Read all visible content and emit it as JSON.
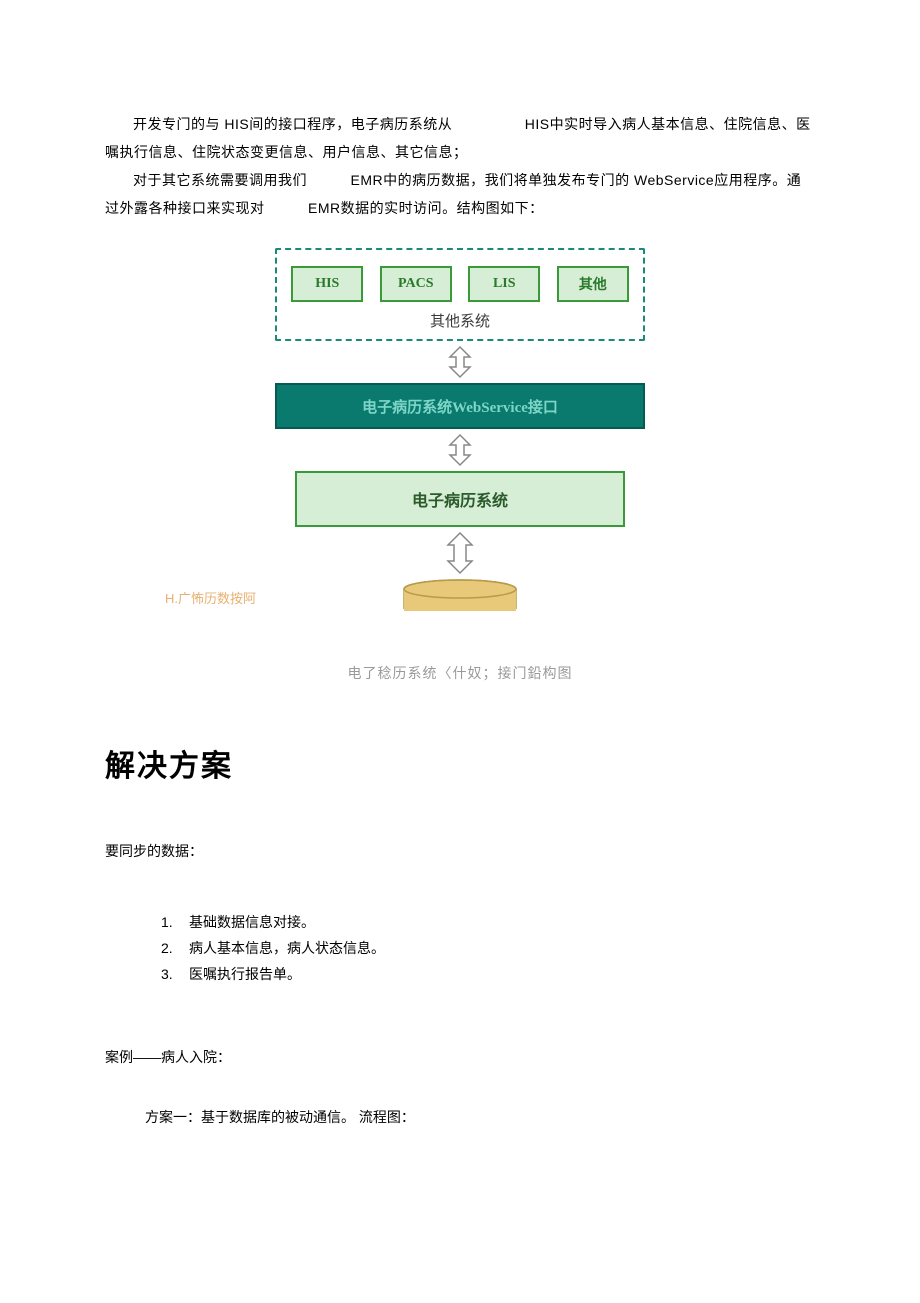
{
  "para1": "开发专门的与 HIS间的接口程序，电子病历系统从　　　　　HIS中实时导入病人基本信息、住院信息、医嘱执行信息、住院状态变更信息、用户信息、其它信息；",
  "para2": "对于其它系统需要调用我们　　　EMR中的病历数据，我们将单独发布专门的 WebService应用程序。通过外露各种接口来实现对　　　EMR数据的实时访问。结构图如下：",
  "diagram": {
    "dashedBorderColor": "#1a8a7a",
    "systems": [
      {
        "label": "HIS",
        "bg": "#d6edd6",
        "border": "#3a9a3a",
        "text": "#2b7a2b"
      },
      {
        "label": "PACS",
        "bg": "#d6edd6",
        "border": "#3a9a3a",
        "text": "#2b7a2b"
      },
      {
        "label": "LIS",
        "bg": "#d6edd6",
        "border": "#3a9a3a",
        "text": "#2b7a2b"
      },
      {
        "label": "其他",
        "bg": "#d6edd6",
        "border": "#3a9a3a",
        "text": "#2b7a2b"
      }
    ],
    "systemsCaption": "其他系统",
    "wsBox": {
      "label": "电子病历系统WebService接口",
      "bg": "#0a7a6e",
      "border": "#065a50",
      "text": "#7ed6c8"
    },
    "emrBox": {
      "label": "电子病历系统",
      "bg": "#d6edd6",
      "border": "#3a9a3a"
    },
    "arrowColor": "#888888",
    "cylinder": {
      "fill": "#e8c97a",
      "stroke": "#b89a4a"
    }
  },
  "sideLabel": "H.广怖历数按阿",
  "figCaption": "电了稔历系统〈什奴；接门鉛构图",
  "heading": "解决方案",
  "syncLabel": "要同步的数据：",
  "listItems": [
    {
      "num": "1.",
      "text": "基础数据信息对接。"
    },
    {
      "num": "2.",
      "text": "病人基本信息，病人状态信息。"
    },
    {
      "num": "3.",
      "text": "医嘱执行报告单。"
    }
  ],
  "caseLabel": "案例——病人入院：",
  "planLabel": "方案一：基于数据库的被动通信。 流程图："
}
